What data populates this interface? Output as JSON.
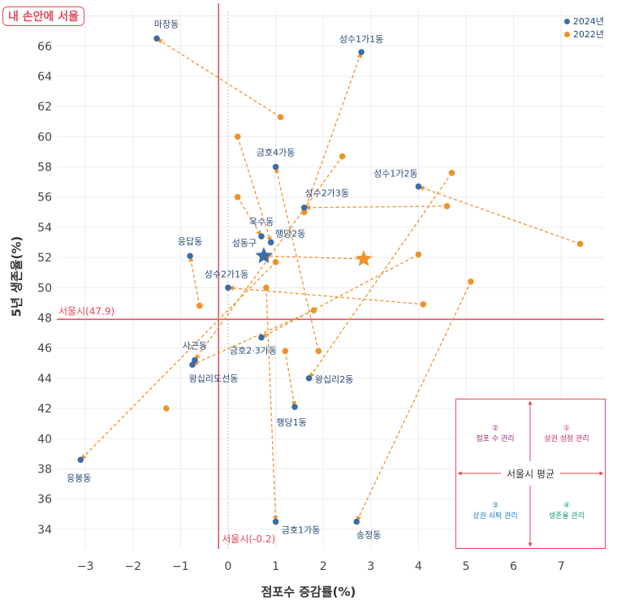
{
  "watermark": "내 손안에 서울",
  "legend": [
    {
      "label": "2024년",
      "color": "#3d6ba6"
    },
    {
      "label": "2022년",
      "color": "#f0922a"
    }
  ],
  "chart_data": {
    "type": "scatter",
    "xlabel": "점포수 증감률(%)",
    "ylabel": "5년 생존율(%)",
    "xlim": [
      -3.6,
      7.9
    ],
    "ylim": [
      32.7,
      68.3
    ],
    "xticks": [
      -3,
      -2,
      -1,
      0,
      1,
      2,
      3,
      4,
      5,
      6,
      7
    ],
    "yticks": [
      34,
      36,
      38,
      40,
      42,
      44,
      46,
      48,
      50,
      52,
      54,
      56,
      58,
      60,
      62,
      64,
      66,
      68
    ],
    "grid": true,
    "legend_position": "top-right",
    "reference_lines": {
      "vertical": {
        "x": -0.2,
        "label": "서울시(-0.2)",
        "color": "#e24a5b"
      },
      "horizontal": {
        "y": 47.9,
        "label": "서울시(47.9)",
        "color": "#e24a5b"
      }
    },
    "series": [
      {
        "name": "2024년",
        "color": "#3d6ba6"
      },
      {
        "name": "2022년",
        "color": "#f0922a"
      }
    ],
    "points": [
      {
        "name": "마장동",
        "y2022": [
          1.1,
          61.3
        ],
        "y2024": [
          -1.5,
          66.5
        ]
      },
      {
        "name": "성수1가1동",
        "y2022": [
          1.6,
          55.0
        ],
        "y2024": [
          2.8,
          65.6
        ]
      },
      {
        "name": "금호4가동",
        "y2022": [
          1.9,
          45.8
        ],
        "y2024": [
          1.0,
          58.0
        ]
      },
      {
        "name": "성수1가2동",
        "y2022": [
          7.4,
          52.9
        ],
        "y2024": [
          4.0,
          56.7
        ]
      },
      {
        "name": "성수2가3동",
        "y2022": [
          4.6,
          55.4
        ],
        "y2024": [
          1.6,
          55.3
        ]
      },
      {
        "name": "옥수동",
        "y2022": [
          0.2,
          56.0
        ],
        "y2024": [
          0.7,
          53.4
        ]
      },
      {
        "name": "행당2동",
        "y2022": [
          0.2,
          60.0
        ],
        "y2024": [
          0.9,
          53.0
        ]
      },
      {
        "name": "응답동",
        "y2022": [
          -0.6,
          48.8
        ],
        "y2024": [
          -0.8,
          52.1
        ]
      },
      {
        "name": "성동구",
        "y2022": [
          2.85,
          51.9
        ],
        "y2024": [
          0.75,
          52.1
        ],
        "marker": "star"
      },
      {
        "name": "성수2가1동",
        "y2022": [
          4.1,
          48.9
        ],
        "y2024": [
          0.0,
          50.0
        ]
      },
      {
        "name": "금호2·3가동",
        "y2022": [
          4.0,
          52.2
        ],
        "y2024": [
          0.7,
          46.7
        ]
      },
      {
        "name": "사근동",
        "y2022": [
          2.4,
          58.7
        ],
        "y2024": [
          -0.7,
          45.2
        ]
      },
      {
        "name": "왕십리도선동",
        "y2022": [
          1.8,
          48.5
        ],
        "y2024": [
          -0.75,
          44.9
        ]
      },
      {
        "name": "왕십리2동",
        "y2022": [
          4.7,
          57.6
        ],
        "y2024": [
          1.7,
          44.0
        ]
      },
      {
        "name": "행당1동",
        "y2022": [
          1.2,
          45.8
        ],
        "y2024": [
          1.4,
          42.1
        ]
      },
      {
        "name": "응봉동",
        "y2022": [
          1.0,
          51.7
        ],
        "y2024": [
          -3.1,
          38.6
        ]
      },
      {
        "name": "금호1가동",
        "y2022": [
          0.8,
          50.0
        ],
        "y2024": [
          1.0,
          34.5
        ]
      },
      {
        "name": "송정동",
        "y2022": [
          5.1,
          50.4
        ],
        "y2024": [
          2.7,
          34.5
        ]
      },
      {
        "name": "",
        "y2022": [
          -1.3,
          42.0
        ],
        "y2024": null
      }
    ]
  },
  "quadrant_box": {
    "top_left": {
      "num": "②",
      "text": "점포 수 관리",
      "color": "#a0287a"
    },
    "top_right": {
      "num": "①",
      "text": "상권 성장 관리",
      "color": "#d0245a"
    },
    "center": "서울시 평균",
    "bottom_left": {
      "num": "③",
      "text": "상권 쇠퇴 관리",
      "color": "#1f7fc0"
    },
    "bottom_right": {
      "num": "④",
      "text": "생존율 관리",
      "color": "#1a9a6a"
    }
  }
}
